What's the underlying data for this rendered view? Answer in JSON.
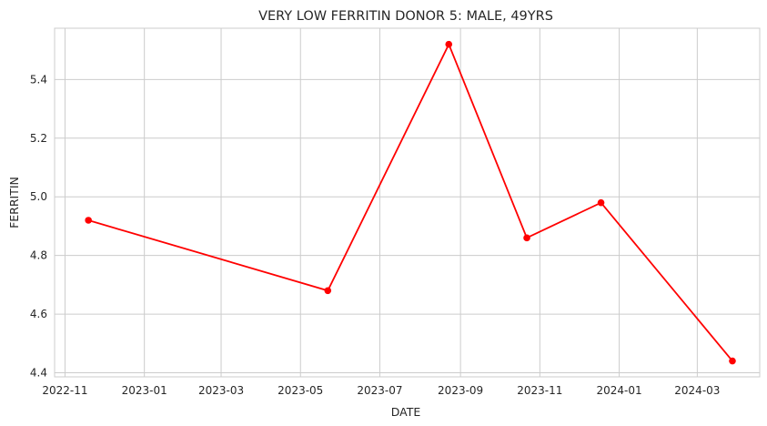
{
  "chart_data": {
    "type": "line",
    "title": "VERY LOW FERRITIN DONOR 5:   MALE, 49YRS",
    "xlabel": "DATE",
    "ylabel": "FERRITIN",
    "x_ticks": [
      "2022-11",
      "2023-01",
      "2023-03",
      "2023-05",
      "2023-07",
      "2023-09",
      "2023-11",
      "2024-01",
      "2024-03"
    ],
    "y_ticks": [
      4.4,
      4.6,
      4.8,
      5.0,
      5.2,
      5.4
    ],
    "xlim": [
      "2022-10-24",
      "2024-04-18"
    ],
    "ylim": [
      4.386,
      5.575
    ],
    "grid": true,
    "series": [
      {
        "color": "#ff0000",
        "x": [
          "2022-11-19",
          "2023-05-22",
          "2023-08-23",
          "2023-10-22",
          "2023-12-18",
          "2024-03-28"
        ],
        "y": [
          4.92,
          4.68,
          5.52,
          4.86,
          4.98,
          4.44
        ]
      }
    ]
  }
}
